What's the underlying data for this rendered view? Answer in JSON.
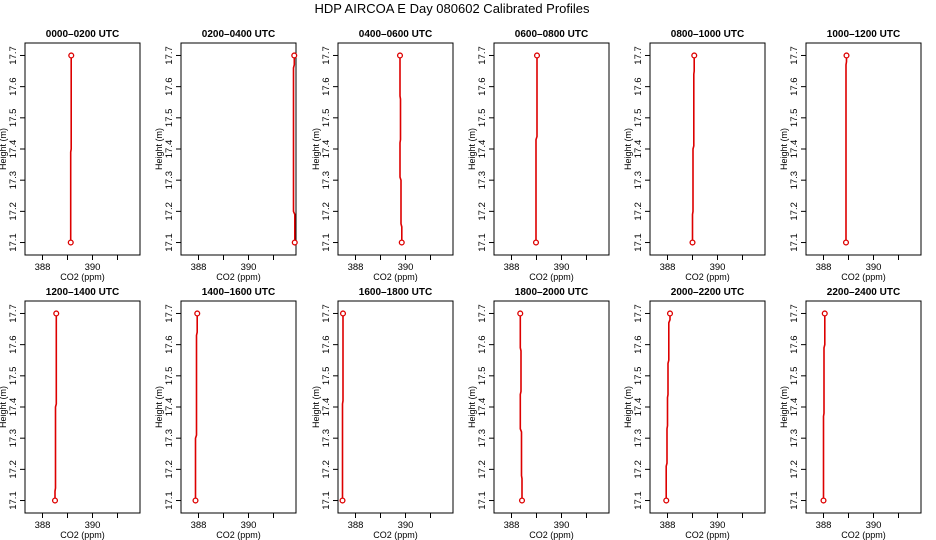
{
  "title": "HDP AIRCOA E  Day 080602  Calibrated Profiles",
  "colors": {
    "line": "#dd0000",
    "point": "#dd0000",
    "frame": "#000000"
  },
  "chart_data": [
    {
      "type": "line",
      "title": "0000–0200 UTC",
      "xlabel": "CO2 (ppm)",
      "ylabel": "Height (m)",
      "xlim": [
        387.3,
        391.9
      ],
      "ylim": [
        17.06,
        17.74
      ],
      "xticks": [
        388,
        390
      ],
      "yticks": [
        17.1,
        17.2,
        17.3,
        17.4,
        17.5,
        17.6,
        17.7
      ],
      "points": [
        [
          389.15,
          17.7
        ],
        [
          389.13,
          17.1
        ]
      ],
      "path": [
        [
          389.15,
          17.7
        ],
        [
          389.15,
          17.4
        ],
        [
          389.13,
          17.39
        ],
        [
          389.13,
          17.1
        ]
      ]
    },
    {
      "type": "line",
      "title": "0200–0400 UTC",
      "xlabel": "CO2 (ppm)",
      "ylabel": "Height (m)",
      "xlim": [
        387.3,
        391.9
      ],
      "ylim": [
        17.06,
        17.74
      ],
      "xticks": [
        388,
        390
      ],
      "yticks": [
        17.1,
        17.2,
        17.3,
        17.4,
        17.5,
        17.6,
        17.7
      ],
      "points": [
        [
          391.83,
          17.7
        ],
        [
          391.85,
          17.1
        ]
      ],
      "path": [
        [
          391.83,
          17.7
        ],
        [
          391.83,
          17.67
        ],
        [
          391.8,
          17.66
        ],
        [
          391.8,
          17.2
        ],
        [
          391.85,
          17.19
        ],
        [
          391.85,
          17.1
        ]
      ]
    },
    {
      "type": "line",
      "title": "0400–0600 UTC",
      "xlabel": "CO2 (ppm)",
      "ylabel": "Height (m)",
      "xlim": [
        387.3,
        391.9
      ],
      "ylim": [
        17.06,
        17.74
      ],
      "xticks": [
        388,
        390
      ],
      "yticks": [
        17.1,
        17.2,
        17.3,
        17.4,
        17.5,
        17.6,
        17.7
      ],
      "points": [
        [
          389.78,
          17.7
        ],
        [
          389.85,
          17.1
        ]
      ],
      "path": [
        [
          389.78,
          17.7
        ],
        [
          389.78,
          17.57
        ],
        [
          389.8,
          17.56
        ],
        [
          389.8,
          17.43
        ],
        [
          389.78,
          17.42
        ],
        [
          389.78,
          17.31
        ],
        [
          389.82,
          17.3
        ],
        [
          389.82,
          17.16
        ],
        [
          389.85,
          17.15
        ],
        [
          389.85,
          17.1
        ]
      ]
    },
    {
      "type": "line",
      "title": "0600–0800 UTC",
      "xlabel": "CO2 (ppm)",
      "ylabel": "Height (m)",
      "xlim": [
        387.3,
        391.9
      ],
      "ylim": [
        17.06,
        17.74
      ],
      "xticks": [
        388,
        390
      ],
      "yticks": [
        17.1,
        17.2,
        17.3,
        17.4,
        17.5,
        17.6,
        17.7
      ],
      "points": [
        [
          389.02,
          17.7
        ],
        [
          388.98,
          17.1
        ]
      ],
      "path": [
        [
          389.02,
          17.7
        ],
        [
          389.02,
          17.44
        ],
        [
          388.98,
          17.43
        ],
        [
          388.98,
          17.1
        ]
      ]
    },
    {
      "type": "line",
      "title": "0800–1000 UTC",
      "xlabel": "CO2 (ppm)",
      "ylabel": "Height (m)",
      "xlim": [
        387.3,
        391.9
      ],
      "ylim": [
        17.06,
        17.74
      ],
      "xticks": [
        388,
        390
      ],
      "yticks": [
        17.1,
        17.2,
        17.3,
        17.4,
        17.5,
        17.6,
        17.7
      ],
      "points": [
        [
          389.07,
          17.7
        ],
        [
          389.0,
          17.1
        ]
      ],
      "path": [
        [
          389.07,
          17.7
        ],
        [
          389.07,
          17.65
        ],
        [
          389.05,
          17.64
        ],
        [
          389.05,
          17.41
        ],
        [
          389.02,
          17.4
        ],
        [
          389.02,
          17.2
        ],
        [
          389.0,
          17.19
        ],
        [
          389.0,
          17.1
        ]
      ]
    },
    {
      "type": "line",
      "title": "1000–1200 UTC",
      "xlabel": "CO2 (ppm)",
      "ylabel": "Height (m)",
      "xlim": [
        387.3,
        391.9
      ],
      "ylim": [
        17.06,
        17.74
      ],
      "xticks": [
        388,
        390
      ],
      "yticks": [
        17.1,
        17.2,
        17.3,
        17.4,
        17.5,
        17.6,
        17.7
      ],
      "points": [
        [
          388.92,
          17.7
        ],
        [
          388.9,
          17.1
        ]
      ],
      "path": [
        [
          388.92,
          17.7
        ],
        [
          388.92,
          17.68
        ],
        [
          388.9,
          17.67
        ],
        [
          388.9,
          17.1
        ]
      ]
    },
    {
      "type": "line",
      "title": "1200–1400 UTC",
      "xlabel": "CO2 (ppm)",
      "ylabel": "Height (m)",
      "xlim": [
        387.3,
        391.9
      ],
      "ylim": [
        17.06,
        17.74
      ],
      "xticks": [
        388,
        390
      ],
      "yticks": [
        17.1,
        17.2,
        17.3,
        17.4,
        17.5,
        17.6,
        17.7
      ],
      "points": [
        [
          388.55,
          17.7
        ],
        [
          388.5,
          17.1
        ]
      ],
      "path": [
        [
          388.55,
          17.7
        ],
        [
          388.55,
          17.41
        ],
        [
          388.52,
          17.4
        ],
        [
          388.52,
          17.14
        ],
        [
          388.5,
          17.13
        ],
        [
          388.5,
          17.1
        ]
      ]
    },
    {
      "type": "line",
      "title": "1400–1600 UTC",
      "xlabel": "CO2 (ppm)",
      "ylabel": "Height (m)",
      "xlim": [
        387.3,
        391.9
      ],
      "ylim": [
        17.06,
        17.74
      ],
      "xticks": [
        388,
        390
      ],
      "yticks": [
        17.1,
        17.2,
        17.3,
        17.4,
        17.5,
        17.6,
        17.7
      ],
      "points": [
        [
          387.95,
          17.7
        ],
        [
          387.88,
          17.1
        ]
      ],
      "path": [
        [
          387.95,
          17.7
        ],
        [
          387.95,
          17.64
        ],
        [
          387.92,
          17.63
        ],
        [
          387.92,
          17.31
        ],
        [
          387.88,
          17.3
        ],
        [
          387.88,
          17.1
        ]
      ]
    },
    {
      "type": "line",
      "title": "1600–1800 UTC",
      "xlabel": "CO2 (ppm)",
      "ylabel": "Height (m)",
      "xlim": [
        387.3,
        391.9
      ],
      "ylim": [
        17.06,
        17.74
      ],
      "xticks": [
        388,
        390
      ],
      "yticks": [
        17.1,
        17.2,
        17.3,
        17.4,
        17.5,
        17.6,
        17.7
      ],
      "points": [
        [
          387.5,
          17.7
        ],
        [
          387.48,
          17.1
        ]
      ],
      "path": [
        [
          387.5,
          17.7
        ],
        [
          387.5,
          17.42
        ],
        [
          387.48,
          17.41
        ],
        [
          387.48,
          17.1
        ]
      ]
    },
    {
      "type": "line",
      "title": "1800–2000 UTC",
      "xlabel": "CO2 (ppm)",
      "ylabel": "Height (m)",
      "xlim": [
        387.3,
        391.9
      ],
      "ylim": [
        17.06,
        17.74
      ],
      "xticks": [
        388,
        390
      ],
      "yticks": [
        17.1,
        17.2,
        17.3,
        17.4,
        17.5,
        17.6,
        17.7
      ],
      "points": [
        [
          388.35,
          17.7
        ],
        [
          388.42,
          17.1
        ]
      ],
      "path": [
        [
          388.35,
          17.7
        ],
        [
          388.35,
          17.59
        ],
        [
          388.38,
          17.58
        ],
        [
          388.38,
          17.45
        ],
        [
          388.35,
          17.44
        ],
        [
          388.35,
          17.33
        ],
        [
          388.4,
          17.32
        ],
        [
          388.4,
          17.18
        ],
        [
          388.42,
          17.17
        ],
        [
          388.42,
          17.1
        ]
      ]
    },
    {
      "type": "line",
      "title": "2000–2200 UTC",
      "xlabel": "CO2 (ppm)",
      "ylabel": "Height (m)",
      "xlim": [
        387.3,
        391.9
      ],
      "ylim": [
        17.06,
        17.74
      ],
      "xticks": [
        388,
        390
      ],
      "yticks": [
        17.1,
        17.2,
        17.3,
        17.4,
        17.5,
        17.6,
        17.7
      ],
      "points": [
        [
          388.1,
          17.7
        ],
        [
          387.95,
          17.1
        ]
      ],
      "path": [
        [
          388.1,
          17.7
        ],
        [
          388.1,
          17.68
        ],
        [
          388.05,
          17.67
        ],
        [
          388.05,
          17.55
        ],
        [
          388.02,
          17.54
        ],
        [
          388.02,
          17.44
        ],
        [
          388.0,
          17.43
        ],
        [
          388.0,
          17.34
        ],
        [
          387.98,
          17.33
        ],
        [
          387.98,
          17.22
        ],
        [
          387.95,
          17.21
        ],
        [
          387.95,
          17.1
        ]
      ]
    },
    {
      "type": "line",
      "title": "2200–2400 UTC",
      "xlabel": "CO2 (ppm)",
      "ylabel": "Height (m)",
      "xlim": [
        387.3,
        391.9
      ],
      "ylim": [
        17.06,
        17.74
      ],
      "xticks": [
        388,
        390
      ],
      "yticks": [
        17.1,
        17.2,
        17.3,
        17.4,
        17.5,
        17.6,
        17.7
      ],
      "points": [
        [
          388.05,
          17.7
        ],
        [
          388.0,
          17.1
        ]
      ],
      "path": [
        [
          388.05,
          17.7
        ],
        [
          388.05,
          17.6
        ],
        [
          388.02,
          17.59
        ],
        [
          388.02,
          17.38
        ],
        [
          388.0,
          17.37
        ],
        [
          388.0,
          17.1
        ]
      ]
    }
  ]
}
